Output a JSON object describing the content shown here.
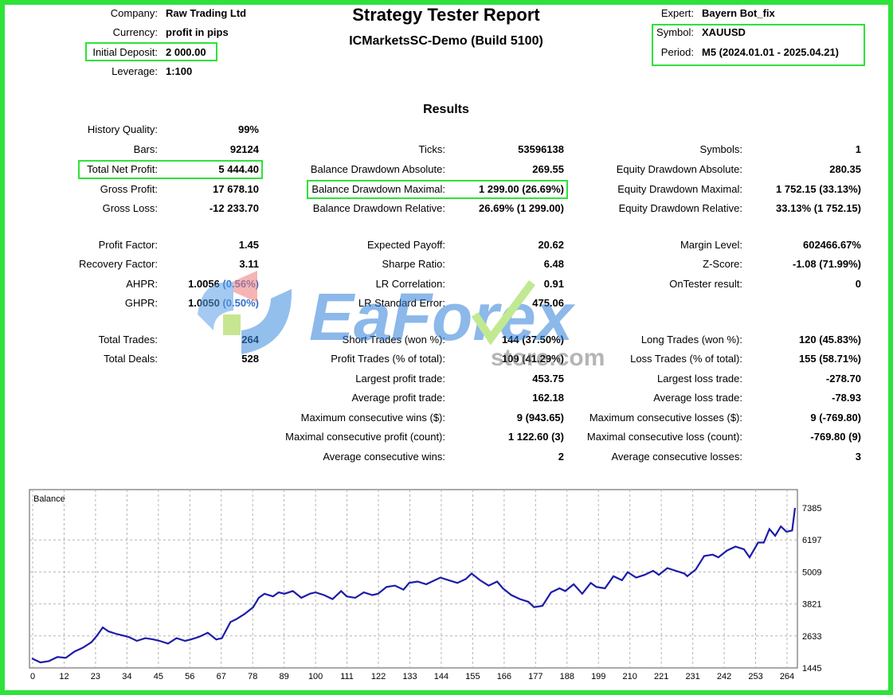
{
  "header": {
    "title": "Strategy Tester Report",
    "subtitle": "ICMarketsSC-Demo (Build 5100)",
    "left": [
      {
        "label": "Company:",
        "value": "Raw Trading Ltd"
      },
      {
        "label": "Currency:",
        "value": "profit in pips"
      },
      {
        "label": "Initial Deposit:",
        "value": "2 000.00"
      },
      {
        "label": "Leverage:",
        "value": "1:100"
      }
    ],
    "right": [
      {
        "label": "Expert:",
        "value": "Bayern Bot_fix"
      },
      {
        "label": "Symbol:",
        "value": "XAUUSD"
      },
      {
        "label": "Period:",
        "value": "M5 (2024.01.01 - 2025.04.21)"
      }
    ]
  },
  "results": {
    "heading": "Results",
    "col1": [
      {
        "label": "History Quality:",
        "value": "99%"
      },
      {
        "label": "Bars:",
        "value": "92124"
      },
      {
        "label": "Total Net Profit:",
        "value": "5 444.40"
      },
      {
        "label": "Gross Profit:",
        "value": "17 678.10"
      },
      {
        "label": "Gross Loss:",
        "value": "-12 233.70"
      },
      {
        "label": "Profit Factor:",
        "value": "1.45"
      },
      {
        "label": "Recovery Factor:",
        "value": "3.11"
      },
      {
        "label": "AHPR:",
        "value": "1.0056",
        "extra": "(0.56%)"
      },
      {
        "label": "GHPR:",
        "value": "1.0050",
        "extra": "(0.50%)"
      },
      {
        "label": "Total Trades:",
        "value": "264"
      },
      {
        "label": "Total Deals:",
        "value": "528"
      }
    ],
    "col2": [
      {
        "label": "Ticks:",
        "value": "53596138"
      },
      {
        "label": "Balance Drawdown Absolute:",
        "value": "269.55"
      },
      {
        "label": "Balance Drawdown Maximal:",
        "value": "1 299.00 (26.69%)"
      },
      {
        "label": "Balance Drawdown Relative:",
        "value": "26.69% (1 299.00)"
      },
      {
        "label": "Expected Payoff:",
        "value": "20.62"
      },
      {
        "label": "Sharpe Ratio:",
        "value": "6.48"
      },
      {
        "label": "LR Correlation:",
        "value": "0.91"
      },
      {
        "label": "LR Standard Error:",
        "value": "475.06"
      },
      {
        "label": "Short Trades (won %):",
        "value": "144 (37.50%)"
      },
      {
        "label": "Profit Trades (% of total):",
        "value": "109 (41.29%)"
      },
      {
        "label": "Largest profit trade:",
        "value": "453.75"
      },
      {
        "label": "Average profit trade:",
        "value": "162.18"
      },
      {
        "label": "Maximum consecutive wins ($):",
        "value": "9 (943.65)"
      },
      {
        "label": "Maximal consecutive profit (count):",
        "value": "1 122.60 (3)"
      },
      {
        "label": "Average consecutive wins:",
        "value": "2"
      }
    ],
    "col3": [
      {
        "label": "Symbols:",
        "value": "1"
      },
      {
        "label": "Equity Drawdown Absolute:",
        "value": "280.35"
      },
      {
        "label": "Equity Drawdown Maximal:",
        "value": "1 752.15 (33.13%)"
      },
      {
        "label": "Equity Drawdown Relative:",
        "value": "33.13% (1 752.15)"
      },
      {
        "label": "Margin Level:",
        "value": "602466.67%"
      },
      {
        "label": "Z-Score:",
        "value": "-1.08 (71.99%)"
      },
      {
        "label": "OnTester result:",
        "value": "0"
      },
      {
        "label": "Long Trades (won %):",
        "value": "120 (45.83%)"
      },
      {
        "label": "Loss Trades (% of total):",
        "value": "155 (58.71%)"
      },
      {
        "label": "Largest loss trade:",
        "value": "-278.70"
      },
      {
        "label": "Average loss trade:",
        "value": "-78.93"
      },
      {
        "label": "Maximum consecutive losses ($):",
        "value": "9 (-769.80)"
      },
      {
        "label": "Maximal consecutive loss (count):",
        "value": "-769.80 (9)"
      },
      {
        "label": "Average consecutive losses:",
        "value": "3"
      }
    ]
  },
  "watermark": {
    "brand": "EaForex",
    "domain": "store.com"
  },
  "colors": {
    "highlight": "#2ee23a",
    "line": "#1c1ca8",
    "grid": "#b4b4b4",
    "watermark_blue": "#2f7fd9",
    "watermark_check": "#8fd83a"
  },
  "chart_data": {
    "type": "line",
    "title": "Balance",
    "x_ticks": [
      "0",
      "12",
      "23",
      "34",
      "45",
      "56",
      "67",
      "78",
      "89",
      "100",
      "111",
      "122",
      "133",
      "144",
      "155",
      "166",
      "177",
      "188",
      "199",
      "210",
      "221",
      "231",
      "242",
      "253",
      "264"
    ],
    "y_ticks": [
      "7385",
      "6197",
      "5009",
      "3821",
      "2633",
      "1445"
    ],
    "xlim": [
      0,
      269
    ],
    "ylim": [
      1445,
      7385
    ],
    "series": [
      {
        "x": [
          0,
          3,
          6,
          9,
          12,
          15,
          18,
          21,
          23,
          25,
          27,
          30,
          34,
          37,
          40,
          43,
          45,
          48,
          51,
          54,
          56,
          59,
          62,
          65,
          67,
          70,
          72,
          75,
          78,
          80,
          82,
          85,
          87,
          89,
          92,
          95,
          98,
          100,
          103,
          106,
          109,
          111,
          114,
          117,
          120,
          122,
          125,
          128,
          131,
          133,
          136,
          139,
          142,
          144,
          147,
          150,
          153,
          155,
          158,
          161,
          164,
          166,
          169,
          172,
          175,
          177,
          180,
          183,
          186,
          188,
          191,
          194,
          197,
          199,
          202,
          205,
          208,
          210,
          213,
          216,
          219,
          221,
          224,
          227,
          230,
          231,
          234,
          237,
          240,
          242,
          245,
          248,
          251,
          253,
          256,
          258,
          260,
          262,
          264,
          266,
          268,
          269
        ],
        "y": [
          1800,
          1650,
          1700,
          1850,
          1820,
          2050,
          2200,
          2400,
          2650,
          2950,
          2800,
          2700,
          2600,
          2450,
          2550,
          2500,
          2450,
          2350,
          2550,
          2450,
          2500,
          2600,
          2750,
          2500,
          2550,
          3150,
          3250,
          3450,
          3700,
          4050,
          4200,
          4100,
          4250,
          4200,
          4300,
          4050,
          4200,
          4250,
          4150,
          4000,
          4300,
          4100,
          4050,
          4250,
          4150,
          4200,
          4450,
          4500,
          4350,
          4600,
          4650,
          4550,
          4700,
          4800,
          4700,
          4600,
          4750,
          4950,
          4700,
          4500,
          4650,
          4400,
          4150,
          4000,
          3900,
          3700,
          3750,
          4250,
          4400,
          4300,
          4550,
          4200,
          4600,
          4450,
          4400,
          4850,
          4700,
          5000,
          4800,
          4900,
          5050,
          4900,
          5150,
          5050,
          4950,
          4850,
          5100,
          5600,
          5650,
          5550,
          5800,
          5950,
          5850,
          5550,
          6100,
          6100,
          6600,
          6350,
          6700,
          6500,
          6550,
          7385
        ]
      }
    ]
  }
}
